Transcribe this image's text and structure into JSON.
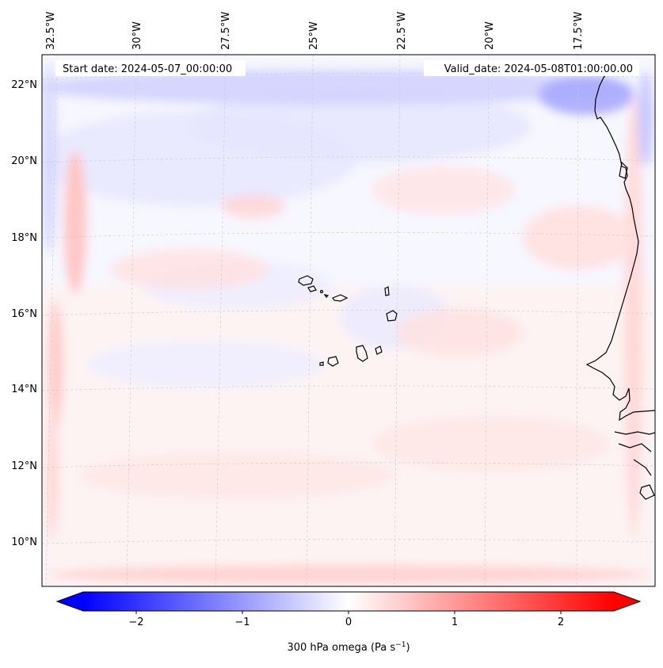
{
  "map": {
    "start_label": "Start date: 2024-05-07_00:00:00",
    "valid_label": "Valid_date: 2024-05-08T01:00:00.00",
    "lon_ticks": [
      "32.5°W",
      "30°W",
      "27.5°W",
      "25°W",
      "22.5°W",
      "20°W",
      "17.5°W"
    ],
    "lat_ticks": [
      "22°N",
      "20°N",
      "18°N",
      "16°N",
      "14°N",
      "12°N",
      "10°N"
    ],
    "field_colors": {
      "neg_strong": "#0000ff",
      "neg_light": "#c8c8ff",
      "zero": "#ffffff",
      "pos_light": "#ffc8c8",
      "pos_strong": "#ff0000"
    },
    "coastline_color": "#000000",
    "gridline_color": "#c8c8c8"
  },
  "colorbar": {
    "label_main": "300 hPa omega (Pa s",
    "label_sup": "−1",
    "label_end": ")",
    "range": [
      -2.5,
      2.5
    ],
    "tick_values": [
      -2,
      -1,
      0,
      1,
      2
    ],
    "tick_labels": [
      "−2",
      "−1",
      "0",
      "1",
      "2"
    ],
    "extend": "both",
    "cmap": "bwr"
  }
}
